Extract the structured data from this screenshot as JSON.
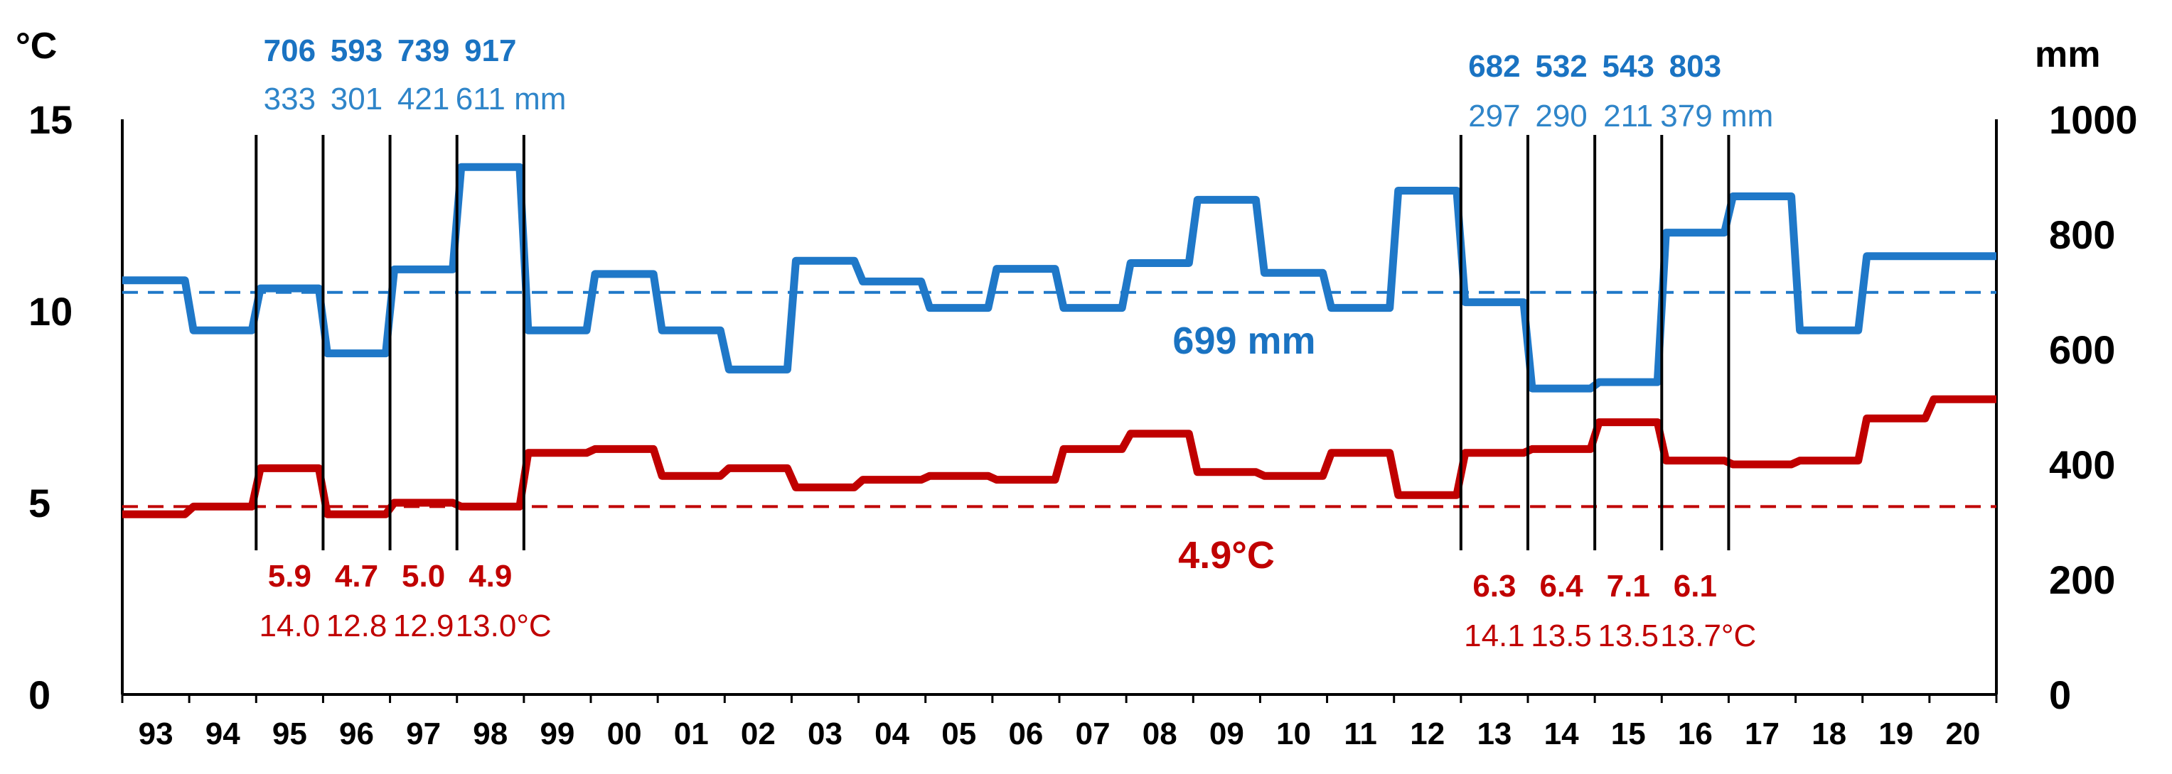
{
  "chart_data": {
    "type": "line",
    "step": true,
    "categories": [
      "93",
      "94",
      "95",
      "96",
      "97",
      "98",
      "99",
      "00",
      "01",
      "02",
      "03",
      "04",
      "05",
      "06",
      "07",
      "08",
      "09",
      "10",
      "11",
      "12",
      "13",
      "14",
      "15",
      "16",
      "17",
      "18",
      "19",
      "20"
    ],
    "left_axis": {
      "unit": "°C",
      "ticks": [
        "0",
        "5",
        "10",
        "15"
      ],
      "range": [
        0,
        15
      ]
    },
    "right_axis": {
      "unit": "mm",
      "ticks": [
        "0",
        "200",
        "400",
        "600",
        "800",
        "1000"
      ],
      "range": [
        0,
        1000
      ]
    },
    "series": [
      {
        "key": "precipitation",
        "axis": "right",
        "color": "#1f78c8",
        "values": [
          720,
          633,
          706,
          593,
          739,
          917,
          633,
          731,
          633,
          565,
          754,
          718,
          672,
          740,
          672,
          750,
          860,
          733,
          672,
          876,
          682,
          532,
          543,
          803,
          866,
          633,
          762,
          762
        ]
      },
      {
        "key": "temperature",
        "axis": "left",
        "color": "#c00000",
        "values": [
          4.7,
          4.9,
          5.9,
          4.7,
          5.0,
          4.9,
          6.3,
          6.4,
          5.7,
          5.9,
          5.4,
          5.6,
          5.7,
          5.6,
          6.4,
          6.8,
          5.8,
          5.7,
          6.3,
          5.2,
          6.3,
          6.4,
          7.1,
          6.1,
          6.0,
          6.1,
          7.2,
          7.7
        ]
      }
    ],
    "averages": {
      "precipitation": {
        "value": 699,
        "label": "699 mm",
        "color": "#1f78c8"
      },
      "temperature": {
        "value": 4.9,
        "label": "4.9°C",
        "color": "#c00000"
      }
    },
    "annotations": {
      "left_group": {
        "divider_years": [
          "95",
          "96",
          "97",
          "98",
          "99"
        ],
        "precip_bold": [
          "706",
          "593",
          "739",
          "917"
        ],
        "precip_reg": [
          "333",
          "301",
          "421",
          "611 mm"
        ],
        "temp_bold": [
          "5.9",
          "4.7",
          "5.0",
          "4.9"
        ],
        "temp_reg": [
          "14.0",
          "12.8",
          "12.9",
          "13.0°C"
        ]
      },
      "right_group": {
        "divider_years": [
          "13",
          "14",
          "15",
          "16",
          "17"
        ],
        "precip_bold": [
          "682",
          "532",
          "543",
          "803"
        ],
        "precip_reg": [
          "297",
          "290",
          "211",
          "379 mm"
        ],
        "temp_bold": [
          "6.3",
          "6.4",
          "7.1",
          "6.1"
        ],
        "temp_reg": [
          "14.1",
          "13.5",
          "13.5",
          "13.7°C"
        ]
      }
    },
    "grid": false,
    "legend": "none"
  }
}
